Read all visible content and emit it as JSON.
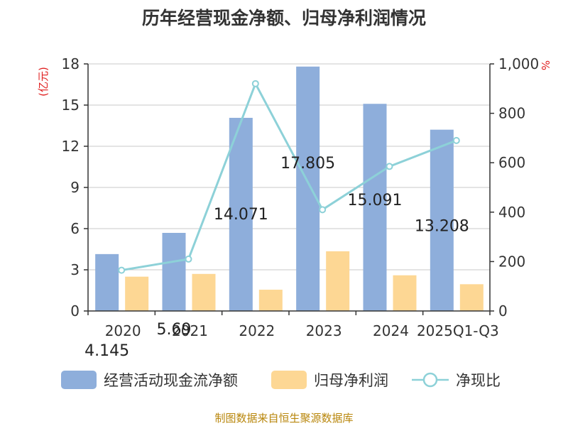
{
  "title": "历年经营现金净额、归母净利润情况",
  "source": "制图数据来自恒生聚源数据库",
  "chart_data": {
    "type": "bar",
    "categories": [
      "2020",
      "2021",
      "2022",
      "2023",
      "2024",
      "2025Q1-Q3"
    ],
    "series": [
      {
        "name": "经营活动现金流净额",
        "type": "bar",
        "axis": "left",
        "color": "#8eaedb",
        "values": [
          4.145,
          5.69,
          14.071,
          17.805,
          15.091,
          13.208
        ],
        "data_labels": [
          "4.145",
          "5.69",
          "14.071",
          "17.805",
          "15.091",
          "13.208"
        ]
      },
      {
        "name": "归母净利润",
        "type": "bar",
        "axis": "left",
        "color": "#fdd794",
        "values": [
          2.5,
          2.7,
          1.55,
          4.35,
          2.6,
          1.95
        ]
      },
      {
        "name": "净现比",
        "type": "line",
        "axis": "right",
        "color": "#8dd1d8",
        "values": [
          165,
          210,
          920,
          410,
          585,
          690
        ]
      }
    ],
    "y_left": {
      "unit_label": "(亿元)",
      "min": 0,
      "max": 18,
      "ticks": [
        0,
        3,
        6,
        9,
        12,
        15,
        18
      ],
      "tick_labels": [
        "0",
        "3",
        "6",
        "9",
        "12",
        "15",
        "18"
      ]
    },
    "y_right": {
      "unit_label": "%",
      "min": 0,
      "max": 1000,
      "ticks": [
        0,
        200,
        400,
        600,
        800,
        1000
      ],
      "tick_labels": [
        "0",
        "200",
        "400",
        "600",
        "800",
        "1,000"
      ]
    },
    "grid": true,
    "legend_position": "bottom"
  }
}
